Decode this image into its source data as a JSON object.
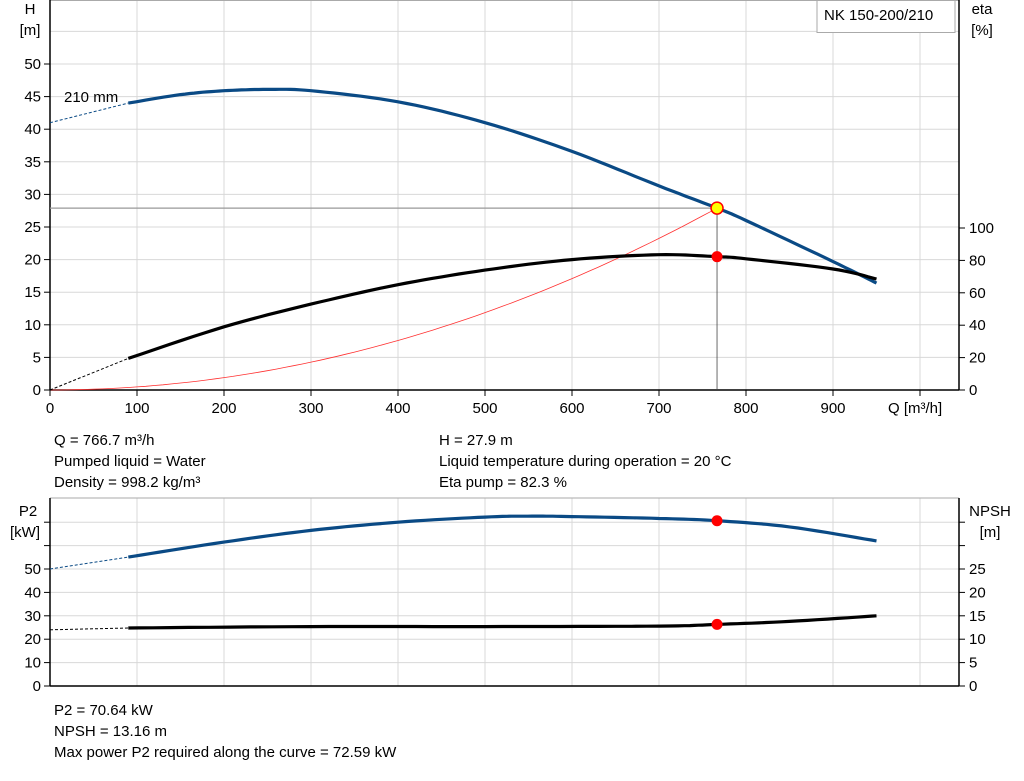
{
  "chart_data": [
    {
      "type": "line",
      "title": "NK 150-200/210",
      "xlabel": "Q [m³/h]",
      "ylabel_left": [
        "H",
        "[m]"
      ],
      "ylabel_right": [
        "eta",
        "[%]"
      ],
      "xlim": [
        0,
        1045
      ],
      "ylim_left": [
        0,
        60
      ],
      "ylim_right_ticks": [
        0,
        20,
        40,
        60,
        80,
        100
      ],
      "x_ticks": [
        0,
        100,
        200,
        300,
        400,
        500,
        600,
        700,
        800,
        900
      ],
      "y_ticks_left": [
        0,
        5,
        10,
        15,
        20,
        25,
        30,
        35,
        40,
        45,
        50
      ],
      "grid": true,
      "curve_label": "210 mm",
      "series": [
        {
          "id": "H",
          "color": "#0a4a85",
          "axis": "left",
          "extrapolated": [
            [
              0,
              41
            ],
            [
              90,
              44
            ]
          ],
          "points": [
            [
              90,
              44
            ],
            [
              150,
              45.3
            ],
            [
              200,
              45.9
            ],
            [
              250,
              46.1
            ],
            [
              300,
              45.9
            ],
            [
              400,
              44.2
            ],
            [
              500,
              41
            ],
            [
              600,
              36.6
            ],
            [
              700,
              31.3
            ],
            [
              766.7,
              27.9
            ],
            [
              800,
              26
            ],
            [
              900,
              19.7
            ],
            [
              950,
              16.4
            ]
          ]
        },
        {
          "id": "eta",
          "color": "#000000",
          "axis": "right",
          "extrapolated": [
            [
              0,
              0
            ],
            [
              90,
              19.5
            ]
          ],
          "points": [
            [
              90,
              19.5
            ],
            [
              200,
              39
            ],
            [
              300,
              53
            ],
            [
              400,
              65
            ],
            [
              500,
              74
            ],
            [
              600,
              80.5
            ],
            [
              700,
              83.5
            ],
            [
              766.7,
              82.3
            ],
            [
              800,
              81
            ],
            [
              900,
              74.7
            ],
            [
              950,
              68.5
            ]
          ]
        },
        {
          "id": "system-curve",
          "color": "#ff0000",
          "axis": "left",
          "quadratic_through": [
            766.7,
            27.9
          ]
        }
      ],
      "operating_point": {
        "Q": 766.7,
        "H": 27.9,
        "eta": 82.3
      }
    },
    {
      "type": "line",
      "ylabel_left": [
        "P2",
        "[kW]"
      ],
      "ylabel_right": [
        "NPSH",
        "[m]"
      ],
      "xlim": [
        0,
        1045
      ],
      "ylim_left": [
        0,
        80
      ],
      "y_ticks_left": [
        0,
        10,
        20,
        30,
        40,
        50
      ],
      "y_ticks_right": [
        0,
        5,
        10,
        15,
        20,
        25
      ],
      "grid": true,
      "series": [
        {
          "id": "P2",
          "color": "#0a4a85",
          "axis": "left",
          "extrapolated": [
            [
              0,
              50
            ],
            [
              90,
              55.1
            ]
          ],
          "points": [
            [
              90,
              55.1
            ],
            [
              200,
              61.5
            ],
            [
              300,
              66.5
            ],
            [
              400,
              70
            ],
            [
              500,
              72.2
            ],
            [
              554,
              72.59
            ],
            [
              600,
              72.4
            ],
            [
              700,
              71.6
            ],
            [
              766.7,
              70.64
            ],
            [
              850,
              68
            ],
            [
              950,
              62
            ]
          ]
        },
        {
          "id": "NPSH",
          "color": "#000000",
          "axis": "right",
          "extrapolated": [
            [
              0,
              12
            ],
            [
              90,
              12.4
            ]
          ],
          "points": [
            [
              90,
              12.4
            ],
            [
              300,
              12.7
            ],
            [
              500,
              12.7
            ],
            [
              700,
              12.8
            ],
            [
              766.7,
              13.16
            ],
            [
              850,
              13.8
            ],
            [
              950,
              15
            ]
          ]
        }
      ],
      "operating_point": {
        "Q": 766.7,
        "P2": 70.64,
        "NPSH": 13.16
      }
    }
  ],
  "info_top": {
    "q": "Q = 766.7 m³/h",
    "liquid": "Pumped liquid = Water",
    "density": "Density = 998.2 kg/m³",
    "h": "H = 27.9 m",
    "temp": "Liquid temperature during operation = 20 °C",
    "eta": "Eta pump = 82.3 %"
  },
  "info_bottom": {
    "p2": "P2 = 70.64 kW",
    "npsh": "NPSH = 13.16 m",
    "maxp2": "Max power P2 required along the curve = 72.59 kW"
  }
}
